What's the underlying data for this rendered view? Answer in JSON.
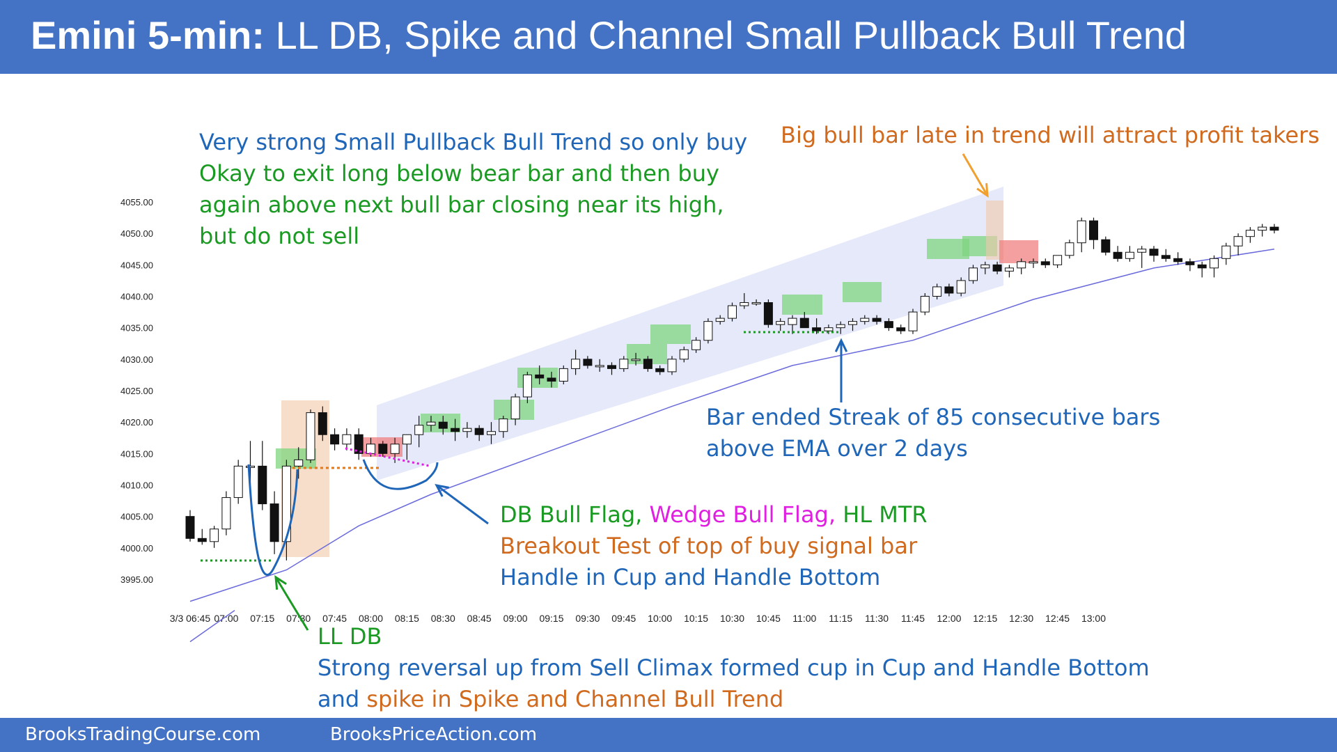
{
  "header": {
    "title_bold": "Emini 5-min:",
    "title_rest": "LL DB, Spike and Channel Small Pullback Bull Trend",
    "bg_color": "#4472c4"
  },
  "footer": {
    "left": "BrooksTradingCourse.com",
    "right": "BrooksPriceAction.com"
  },
  "annotations": {
    "top_left_line1": "Very strong Small Pullback Bull Trend so only buy",
    "top_left_line2": "Okay to exit long below bear bar and then buy",
    "top_left_line3": "again above next bull bar closing near its high,",
    "top_left_line4": "but do not sell",
    "top_right": "Big bull bar late in trend will attract profit takers",
    "streak_line1": "Bar ended Streak of 85 consecutive bars",
    "streak_line2": "above EMA over 2 days",
    "db_part1": "DB Bull Flag,",
    "db_part2": "Wedge Bull Flag,",
    "db_part3": "HL MTR",
    "breakout": "Breakout Test of top of buy signal bar",
    "handle": "Handle in Cup and Handle Bottom",
    "lldb": "LL DB",
    "reversal": "Strong reversal up from Sell Climax formed cup in Cup and Handle Bottom",
    "spike_part1": "and",
    "spike_part2": "spike in Spike and Channel Bull Trend"
  },
  "colors": {
    "blue_text": "#1f66b8",
    "green_text": "#1a9a23",
    "orange_text": "#d06a1e",
    "magenta_text": "#e020e0",
    "ema_line": "#6a6adc",
    "channel": "#dfe3f7",
    "green_box": "#7fd67f",
    "red_box": "#f08080",
    "tan_box": "#f0c8a8"
  },
  "chart_data": {
    "type": "candlestick",
    "y_ticks": [
      "4055.00",
      "4050.00",
      "4045.00",
      "4040.00",
      "4035.00",
      "4030.00",
      "4025.00",
      "4020.00",
      "4015.00",
      "4010.00",
      "4005.00",
      "4000.00",
      "3995.00"
    ],
    "ylim": [
      3995,
      4055
    ],
    "x_ticks": [
      "3/3 06:45",
      "07:00",
      "07:15",
      "07:30",
      "07:45",
      "08:00",
      "08:15",
      "08:30",
      "08:45",
      "09:00",
      "09:15",
      "09:30",
      "09:45",
      "10:00",
      "10:15",
      "10:30",
      "10:45",
      "11:00",
      "11:15",
      "11:30",
      "11:45",
      "12:00",
      "12:15",
      "12:30",
      "12:45",
      "13:00"
    ],
    "bar_interval_minutes": 5,
    "first_bar": "06:45",
    "candles": [
      [
        4005.0,
        4006.0,
        4001.0,
        4001.5
      ],
      [
        4001.5,
        4003.0,
        4000.5,
        4001.0
      ],
      [
        4001.0,
        4003.5,
        4000.0,
        4003.0
      ],
      [
        4003.0,
        4009.0,
        4002.0,
        4008.0
      ],
      [
        4008.0,
        4014.0,
        4007.0,
        4013.0
      ],
      [
        4013.0,
        4017.0,
        4010.0,
        4013.0
      ],
      [
        4013.0,
        4017.0,
        4006.0,
        4007.0
      ],
      [
        4007.0,
        4009.0,
        3999.0,
        4001.0
      ],
      [
        4001.0,
        4014.0,
        3998.0,
        4013.0
      ],
      [
        4013.0,
        4016.0,
        4011.0,
        4014.0
      ],
      [
        4014.0,
        4022.0,
        4013.5,
        4021.5
      ],
      [
        4021.5,
        4022.5,
        4017.0,
        4018.0
      ],
      [
        4018.0,
        4019.0,
        4015.5,
        4016.5
      ],
      [
        4016.5,
        4019.0,
        4015.5,
        4018.0
      ],
      [
        4018.0,
        4019.0,
        4014.0,
        4015.0
      ],
      [
        4015.0,
        4017.5,
        4014.5,
        4016.5
      ],
      [
        4016.5,
        4017.0,
        4014.5,
        4015.0
      ],
      [
        4015.0,
        4017.5,
        4013.5,
        4016.5
      ],
      [
        4016.5,
        4018.0,
        4014.0,
        4018.0
      ],
      [
        4018.0,
        4021.0,
        4016.0,
        4019.5
      ],
      [
        4019.5,
        4021.0,
        4018.5,
        4020.0
      ],
      [
        4020.0,
        4021.0,
        4018.0,
        4019.0
      ],
      [
        4019.0,
        4020.5,
        4017.0,
        4018.5
      ],
      [
        4018.5,
        4020.0,
        4017.5,
        4019.0
      ],
      [
        4019.0,
        4019.5,
        4017.0,
        4018.0
      ],
      [
        4018.0,
        4020.0,
        4016.5,
        4018.5
      ],
      [
        4018.5,
        4021.0,
        4017.5,
        4020.5
      ],
      [
        4020.5,
        4024.5,
        4019.5,
        4024.0
      ],
      [
        4024.0,
        4028.0,
        4023.0,
        4027.5
      ],
      [
        4027.5,
        4029.0,
        4026.0,
        4027.0
      ],
      [
        4027.0,
        4028.0,
        4025.5,
        4026.5
      ],
      [
        4026.5,
        4029.0,
        4026.0,
        4028.5
      ],
      [
        4028.5,
        4031.5,
        4027.5,
        4030.0
      ],
      [
        4030.0,
        4030.5,
        4028.5,
        4029.0
      ],
      [
        4029.0,
        4030.0,
        4028.0,
        4029.0
      ],
      [
        4029.0,
        4029.5,
        4027.5,
        4028.5
      ],
      [
        4028.5,
        4030.5,
        4028.0,
        4030.0
      ],
      [
        4030.0,
        4031.0,
        4029.0,
        4030.0
      ],
      [
        4030.0,
        4030.5,
        4028.0,
        4028.5
      ],
      [
        4028.5,
        4029.0,
        4027.5,
        4028.0
      ],
      [
        4028.0,
        4030.5,
        4027.5,
        4030.0
      ],
      [
        4030.0,
        4032.0,
        4029.5,
        4031.5
      ],
      [
        4031.5,
        4033.5,
        4031.0,
        4033.0
      ],
      [
        4033.0,
        4036.5,
        4032.5,
        4036.0
      ],
      [
        4036.0,
        4037.0,
        4035.5,
        4036.5
      ],
      [
        4036.5,
        4039.0,
        4036.0,
        4038.5
      ],
      [
        4038.5,
        4040.5,
        4038.0,
        4039.0
      ],
      [
        4039.0,
        4039.5,
        4038.5,
        4039.0
      ],
      [
        4039.0,
        4039.5,
        4035.0,
        4035.5
      ],
      [
        4035.5,
        4036.5,
        4034.5,
        4036.0
      ],
      [
        4035.5,
        4037.0,
        4034.0,
        4036.5
      ],
      [
        4036.5,
        4037.5,
        4035.0,
        4035.0
      ],
      [
        4035.0,
        4036.5,
        4034.0,
        4034.5
      ],
      [
        4034.5,
        4035.5,
        4034.0,
        4035.0
      ],
      [
        4035.0,
        4036.0,
        4034.0,
        4035.5
      ],
      [
        4035.5,
        4036.5,
        4034.5,
        4036.0
      ],
      [
        4036.0,
        4037.0,
        4035.5,
        4036.5
      ],
      [
        4036.5,
        4037.0,
        4035.5,
        4036.0
      ],
      [
        4036.0,
        4036.5,
        4034.5,
        4035.0
      ],
      [
        4035.0,
        4035.5,
        4034.0,
        4034.5
      ],
      [
        4034.5,
        4038.0,
        4034.0,
        4037.5
      ],
      [
        4037.5,
        4040.5,
        4037.0,
        4040.0
      ],
      [
        4040.0,
        4042.0,
        4039.5,
        4041.5
      ],
      [
        4041.5,
        4042.0,
        4040.0,
        4040.5
      ],
      [
        4040.5,
        4043.0,
        4040.0,
        4042.5
      ],
      [
        4042.5,
        4045.0,
        4042.0,
        4044.5
      ],
      [
        4044.5,
        4045.5,
        4043.5,
        4045.0
      ],
      [
        4045.0,
        4045.5,
        4043.5,
        4044.0
      ],
      [
        4044.0,
        4045.0,
        4043.0,
        4044.5
      ],
      [
        4044.5,
        4046.0,
        4043.5,
        4045.5
      ],
      [
        4045.5,
        4046.0,
        4044.5,
        4045.5
      ],
      [
        4045.5,
        4046.0,
        4044.5,
        4045.0
      ],
      [
        4045.0,
        4046.5,
        4044.5,
        4046.5
      ],
      [
        4046.5,
        4049.0,
        4046.0,
        4048.5
      ],
      [
        4048.5,
        4052.5,
        4047.0,
        4052.0
      ],
      [
        4052.0,
        4052.5,
        4047.5,
        4049.0
      ],
      [
        4049.0,
        4049.5,
        4046.5,
        4047.0
      ],
      [
        4047.0,
        4048.0,
        4045.5,
        4046.0
      ],
      [
        4046.0,
        4048.0,
        4045.5,
        4047.0
      ],
      [
        4047.0,
        4048.0,
        4044.5,
        4047.5
      ],
      [
        4047.5,
        4048.0,
        4045.5,
        4046.5
      ],
      [
        4046.5,
        4047.5,
        4045.5,
        4046.0
      ],
      [
        4046.0,
        4047.0,
        4045.0,
        4045.5
      ],
      [
        4045.5,
        4046.0,
        4044.0,
        4045.0
      ],
      [
        4045.0,
        4045.5,
        4043.0,
        4044.5
      ],
      [
        4044.5,
        4046.5,
        4043.0,
        4046.0
      ],
      [
        4046.0,
        4048.5,
        4045.0,
        4048.0
      ],
      [
        4048.0,
        4050.0,
        4046.5,
        4049.5
      ],
      [
        4049.5,
        4051.0,
        4048.5,
        4050.5
      ],
      [
        4050.5,
        4051.5,
        4049.5,
        4051.0
      ],
      [
        4051.0,
        4051.5,
        4050.0,
        4050.5
      ]
    ],
    "ema": [
      [
        0,
        3991.5
      ],
      [
        8,
        3996.5
      ],
      [
        14,
        4003.5
      ],
      [
        20,
        4008.5
      ],
      [
        30,
        4015.5
      ],
      [
        40,
        4022.5
      ],
      [
        50,
        4029.0
      ],
      [
        60,
        4033.0
      ],
      [
        70,
        4039.5
      ],
      [
        80,
        4044.5
      ],
      [
        90,
        4047.5
      ]
    ]
  }
}
